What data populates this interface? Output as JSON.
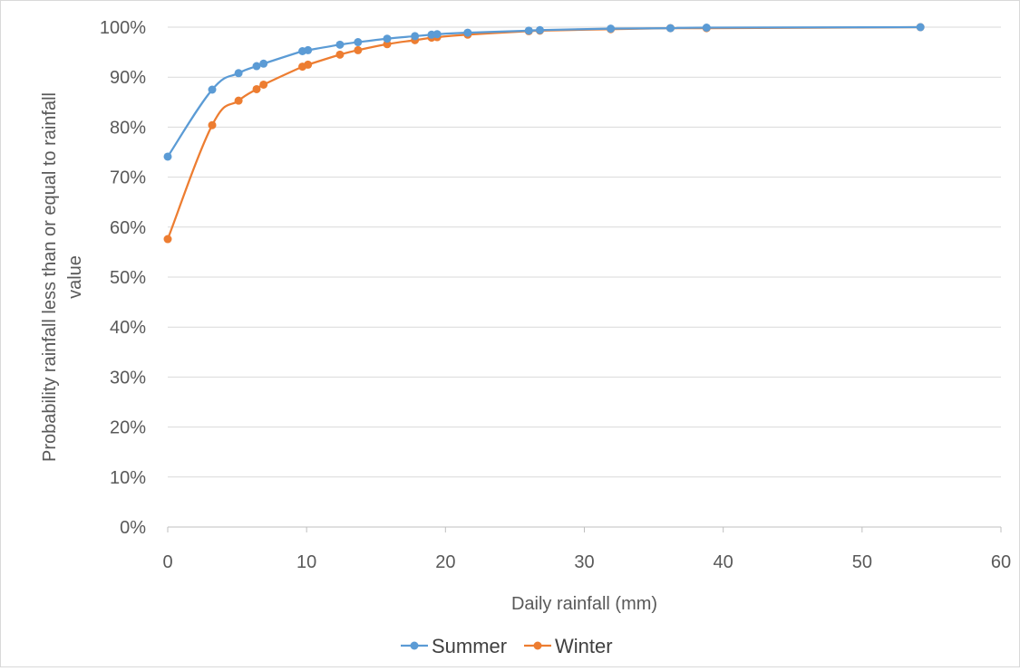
{
  "chart_data": {
    "type": "line",
    "title": "",
    "xlabel": "Daily rainfall (mm)",
    "ylabel": "Probability rainfall less than or equal to rainfall value",
    "xlim": [
      0,
      60
    ],
    "ylim": [
      0,
      1
    ],
    "x_ticks": [
      0,
      10,
      20,
      30,
      40,
      50,
      60
    ],
    "x_tick_labels": [
      "0",
      "10",
      "20",
      "30",
      "40",
      "50",
      "60"
    ],
    "y_ticks": [
      0,
      0.1,
      0.2,
      0.3,
      0.4,
      0.5,
      0.6,
      0.7,
      0.8,
      0.9,
      1.0
    ],
    "y_tick_labels": [
      "0%",
      "10%",
      "20%",
      "30%",
      "40%",
      "50%",
      "60%",
      "70%",
      "80%",
      "90%",
      "100%"
    ],
    "grid": "horizontal",
    "legend_position": "bottom",
    "series": [
      {
        "name": "Summer",
        "color": "#5b9bd5",
        "x": [
          0,
          3.2,
          5.1,
          6.4,
          6.9,
          9.7,
          10.1,
          12.4,
          13.7,
          15.8,
          17.8,
          19.0,
          19.4,
          21.6,
          26.0,
          26.8,
          31.9,
          36.2,
          38.8,
          54.2
        ],
        "y": [
          0.741,
          0.875,
          0.908,
          0.922,
          0.927,
          0.952,
          0.954,
          0.965,
          0.97,
          0.977,
          0.982,
          0.985,
          0.986,
          0.989,
          0.993,
          0.994,
          0.997,
          0.998,
          0.999,
          1.0
        ]
      },
      {
        "name": "Winter",
        "color": "#ed7d31",
        "x": [
          0,
          3.2,
          5.1,
          6.4,
          6.9,
          9.7,
          10.1,
          12.4,
          13.7,
          15.8,
          17.8,
          19.0,
          19.4,
          21.6,
          26.0,
          26.8,
          31.9,
          36.2,
          38.8,
          54.2
        ],
        "y": [
          0.576,
          0.804,
          0.853,
          0.876,
          0.885,
          0.921,
          0.925,
          0.945,
          0.954,
          0.966,
          0.974,
          0.979,
          0.98,
          0.985,
          0.992,
          0.993,
          0.996,
          0.998,
          0.998,
          1.0
        ]
      }
    ]
  }
}
